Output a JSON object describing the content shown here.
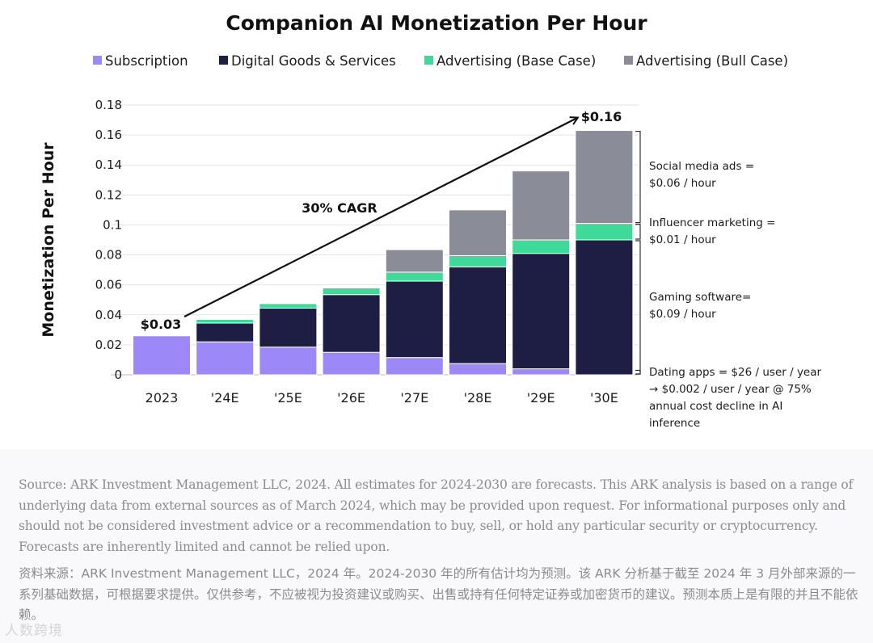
{
  "chart_data": {
    "type": "bar",
    "stacked": true,
    "title": "Companion AI Monetization Per Hour",
    "ylabel": "Monetization Per Hour",
    "xlabel": "",
    "ylim": [
      0,
      0.18
    ],
    "yticks": [
      0,
      0.02,
      0.04,
      0.06,
      0.08,
      0.1,
      0.12,
      0.14,
      0.16,
      0.18
    ],
    "ytick_labels": [
      "0",
      "0.02",
      "0.04",
      "0.06",
      "0.08",
      "0.1",
      "0.12",
      "0.14",
      "0.16",
      "0.18"
    ],
    "grid": true,
    "legend_position": "top",
    "categories": [
      "2023",
      "'24E",
      "'25E",
      "'26E",
      "'27E",
      "'28E",
      "'29E",
      "'30E"
    ],
    "series": [
      {
        "name": "Subscription",
        "color": "#9c88f7",
        "values": [
          0.026,
          0.022,
          0.0185,
          0.015,
          0.0115,
          0.0075,
          0.004,
          0.0
        ]
      },
      {
        "name": "Digital Goods & Services",
        "color": "#1e1e45",
        "values": [
          0.0,
          0.0125,
          0.026,
          0.0385,
          0.051,
          0.0645,
          0.077,
          0.09
        ]
      },
      {
        "name": "Advertising (Base Case)",
        "color": "#3fd99a",
        "values": [
          0.0,
          0.0025,
          0.003,
          0.0045,
          0.006,
          0.0075,
          0.009,
          0.011
        ]
      },
      {
        "name": "Advertising (Bull Case)",
        "color": "#8a8d98",
        "values": [
          0.0,
          0.0,
          0.0,
          0.0,
          0.015,
          0.0305,
          0.046,
          0.062
        ]
      }
    ],
    "annotations": {
      "start_label": "$0.03",
      "end_label": "$0.16",
      "cagr_label": "30% CAGR",
      "right_notes": [
        {
          "lines": [
            "Social media ads =",
            "$0.06 / hour"
          ]
        },
        {
          "lines": [
            "Influencer marketing =",
            "$0.01 / hour"
          ]
        },
        {
          "lines": [
            "Gaming software=",
            "$0.09 / hour"
          ]
        },
        {
          "lines": [
            "Dating apps = $26 / user / year",
            "→ $0.002 / user / year @ 75%",
            "annual cost decline in AI",
            "inference"
          ]
        }
      ]
    }
  },
  "footer": {
    "source_en": "Source: ARK Investment Management LLC, 2024. All estimates for 2024-2030 are forecasts. This ARK analysis is based on a range of underlying data from external sources as of March 2024, which may be provided upon request. For informational purposes only and should not be considered investment advice or a recommendation to buy, sell, or hold any particular security or cryptocurrency. Forecasts are inherently limited and cannot be relied upon.",
    "source_zh": "资料来源：ARK Investment Management LLC，2024 年。2024-2030 年的所有估计均为预测。该 ARK 分析基于截至 2024 年 3 月外部来源的一系列基础数据，可根据要求提供。仅供参考，不应被视为投资建议或购买、出售或持有任何特定证券或加密货币的建议。预测本质上是有限的并且不能依赖。",
    "watermark": "人数跨境"
  }
}
